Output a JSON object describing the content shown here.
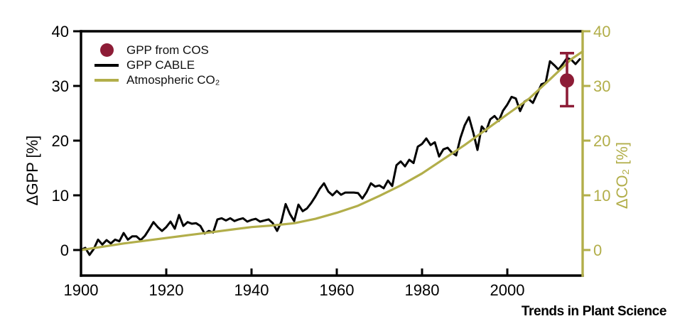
{
  "figure": {
    "branding": "Trends in Plant Science"
  },
  "colors": {
    "gpp_cable": "#000000",
    "co2_olive": "#b2ae4a",
    "cos_maroon": "#8d1c36",
    "background": "#ffffff"
  },
  "legend": {
    "items": [
      {
        "label": "GPP from COS",
        "marker": "circle-icon"
      },
      {
        "label": "GPP CABLE",
        "marker": "line-icon"
      },
      {
        "label": "Atmospheric CO₂",
        "marker": "line-icon"
      }
    ]
  },
  "chart_data": {
    "type": "line",
    "title": "",
    "xlabel": "",
    "ylabel_left": "ΔGPP [%]",
    "ylabel_right": "ΔCO₂ [%]",
    "x_range": [
      1900,
      2017.7
    ],
    "y_range": [
      -4.7,
      40
    ],
    "x_ticks": [
      1900,
      1920,
      1940,
      1960,
      1980,
      2000
    ],
    "y_ticks": [
      0,
      10,
      20,
      30,
      40
    ],
    "grid": false,
    "legend_position": "upper-left-inside",
    "series": [
      {
        "name": "GPP CABLE",
        "type": "line",
        "color": "#000000",
        "x_start": 1900,
        "x_step": 1,
        "values": [
          0.0,
          0.4,
          -0.9,
          0.2,
          1.9,
          1.0,
          1.8,
          1.2,
          1.9,
          1.6,
          3.1,
          1.9,
          2.5,
          2.5,
          1.8,
          2.6,
          3.8,
          5.1,
          4.2,
          3.5,
          4.2,
          5.2,
          3.9,
          6.4,
          4.4,
          5.1,
          4.8,
          4.9,
          4.4,
          3.0,
          3.5,
          3.2,
          5.6,
          5.8,
          5.4,
          5.8,
          5.3,
          5.6,
          5.8,
          5.2,
          5.5,
          5.7,
          5.2,
          5.4,
          5.6,
          4.9,
          3.5,
          5.2,
          8.4,
          6.6,
          5.3,
          8.3,
          7.1,
          7.6,
          8.6,
          9.8,
          11.2,
          12.2,
          10.7,
          10.0,
          10.8,
          10.1,
          10.5,
          10.5,
          10.5,
          10.4,
          9.4,
          10.6,
          12.2,
          11.6,
          11.8,
          11.3,
          12.7,
          11.7,
          15.5,
          16.2,
          15.3,
          16.5,
          15.9,
          18.9,
          19.4,
          20.4,
          19.2,
          19.7,
          17.1,
          18.4,
          18.7,
          17.8,
          17.3,
          20.5,
          22.8,
          24.3,
          21.5,
          18.3,
          22.6,
          21.7,
          23.9,
          24.5,
          23.6,
          25.5,
          26.6,
          28.0,
          27.7,
          25.4,
          27.1,
          27.6,
          26.9,
          28.6,
          30.3,
          30.6,
          34.5,
          33.8,
          33.0,
          34.0,
          35.1,
          34.8,
          34.0,
          34.9
        ]
      },
      {
        "name": "Atmospheric CO2",
        "type": "line",
        "color": "#b2ae4a",
        "points": [
          [
            1900,
            0.0
          ],
          [
            1905,
            0.6
          ],
          [
            1910,
            1.2
          ],
          [
            1915,
            1.7
          ],
          [
            1920,
            2.2
          ],
          [
            1925,
            2.7
          ],
          [
            1930,
            3.2
          ],
          [
            1935,
            3.7
          ],
          [
            1940,
            4.2
          ],
          [
            1945,
            4.5
          ],
          [
            1950,
            4.9
          ],
          [
            1955,
            5.7
          ],
          [
            1960,
            6.8
          ],
          [
            1965,
            8.1
          ],
          [
            1970,
            9.9
          ],
          [
            1975,
            11.8
          ],
          [
            1980,
            14.0
          ],
          [
            1985,
            16.6
          ],
          [
            1990,
            19.2
          ],
          [
            1995,
            22.0
          ],
          [
            2000,
            24.8
          ],
          [
            2005,
            27.6
          ],
          [
            2010,
            31.2
          ],
          [
            2015,
            34.9
          ],
          [
            2017.7,
            36.3
          ]
        ]
      },
      {
        "name": "GPP from COS",
        "type": "scatter",
        "color": "#8d1c36",
        "x": 2014,
        "y": 31.0,
        "y_low": 26.3,
        "y_high": 36.0
      }
    ]
  }
}
